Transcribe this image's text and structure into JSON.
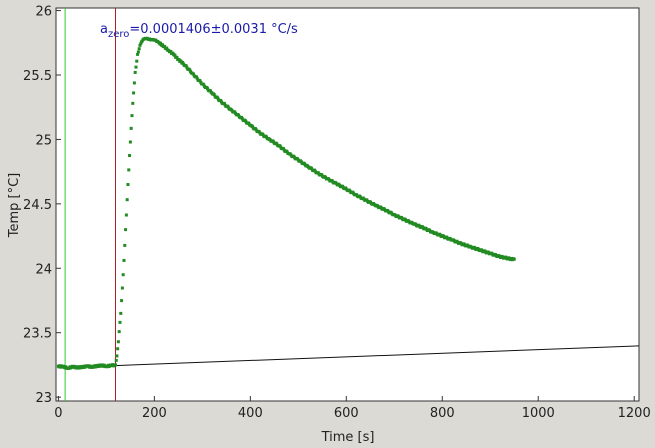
{
  "chart_data": {
    "type": "scatter",
    "xlabel": "Time [s]",
    "ylabel": "Temp [°C]",
    "xlim": [
      -5,
      1210
    ],
    "ylim": [
      22.97,
      26.02
    ],
    "x_ticks": [
      0,
      200,
      400,
      600,
      800,
      1000,
      1200
    ],
    "y_ticks": [
      23,
      23.5,
      24,
      24.5,
      25,
      25.5,
      26
    ],
    "grid": false,
    "annotation": {
      "prefix": "a",
      "subscript": "zero",
      "text": "=0.0001406±0.0031 °C/s",
      "color": "#1a1aaa"
    },
    "vlines": [
      {
        "x": 14,
        "color": "#2ecc2e"
      },
      {
        "x": 119,
        "color": "#aa2222"
      }
    ],
    "fit_line": {
      "x": [
        119,
        1210
      ],
      "y": [
        23.245,
        23.398
      ],
      "color": "#111111"
    },
    "series": [
      {
        "color": "#228b22",
        "x": [
          0,
          10,
          20,
          30,
          40,
          50,
          60,
          70,
          80,
          90,
          100,
          110,
          119,
          122,
          125,
          130,
          135,
          140,
          145,
          150,
          155,
          160,
          165,
          170,
          175,
          180,
          185,
          190,
          195,
          200,
          205,
          210,
          220,
          230,
          240,
          250,
          260,
          280,
          300,
          320,
          340,
          360,
          380,
          400,
          420,
          440,
          460,
          480,
          500,
          520,
          540,
          560,
          580,
          600,
          620,
          640,
          660,
          680,
          700,
          720,
          740,
          760,
          780,
          800,
          820,
          840,
          860,
          880,
          900,
          920,
          940,
          950
        ],
        "y": [
          23.24,
          23.235,
          23.225,
          23.235,
          23.23,
          23.235,
          23.24,
          23.235,
          23.24,
          23.245,
          23.24,
          23.245,
          23.25,
          23.32,
          23.43,
          23.65,
          23.95,
          24.3,
          24.65,
          24.98,
          25.28,
          25.52,
          25.66,
          25.73,
          25.765,
          25.78,
          25.785,
          25.78,
          25.775,
          25.77,
          25.76,
          25.75,
          25.72,
          25.69,
          25.66,
          25.62,
          25.59,
          25.51,
          25.43,
          25.36,
          25.29,
          25.23,
          25.17,
          25.11,
          25.05,
          25.0,
          24.95,
          24.89,
          24.84,
          24.79,
          24.74,
          24.695,
          24.655,
          24.615,
          24.57,
          24.53,
          24.49,
          24.455,
          24.415,
          24.38,
          24.345,
          24.315,
          24.28,
          24.25,
          24.22,
          24.19,
          24.165,
          24.14,
          24.115,
          24.09,
          24.075,
          24.07
        ]
      }
    ]
  }
}
